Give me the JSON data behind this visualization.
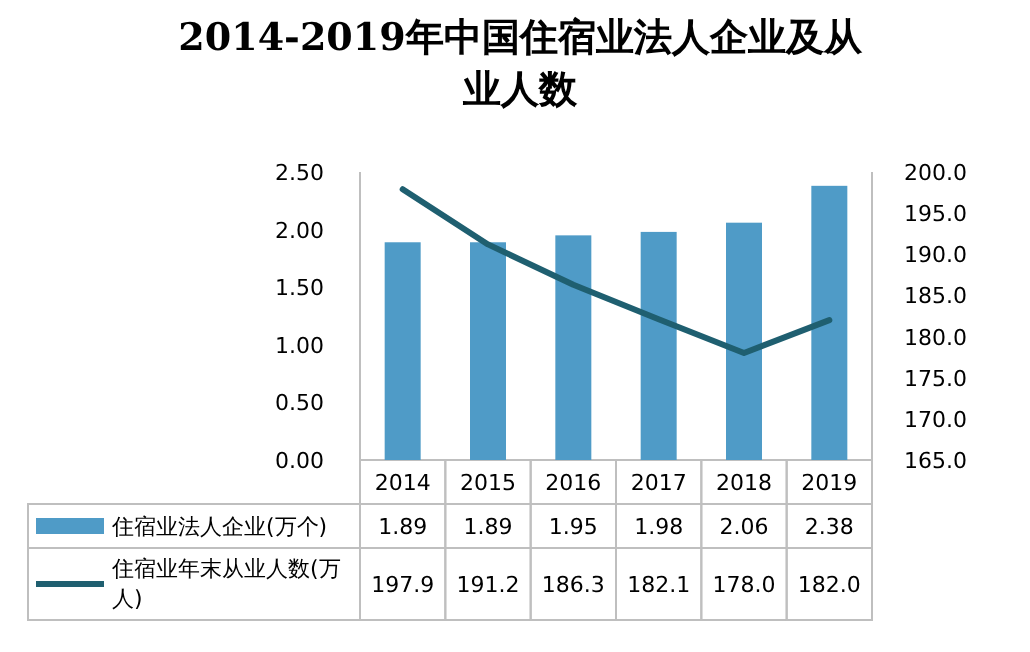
{
  "chart_data": {
    "type": "bar",
    "title": "2014-2019年中国住宿业法人企业及从业人数",
    "categories": [
      "2014",
      "2015",
      "2016",
      "2017",
      "2018",
      "2019"
    ],
    "series": [
      {
        "name": "住宿业法人企业(万个)",
        "color": "#4f9bc7",
        "values": [
          1.89,
          1.89,
          1.95,
          1.98,
          2.06,
          2.38
        ],
        "value_labels": [
          "1.89",
          "1.89",
          "1.95",
          "1.98",
          "2.06",
          "2.38"
        ]
      },
      {
        "name": "住宿业年末从业人数(万人)",
        "type": "line",
        "axis": "y2",
        "color": "#1f5f70",
        "values": [
          197.9,
          191.2,
          186.3,
          182.1,
          178.0,
          182.0
        ],
        "value_labels": [
          "197.9",
          "191.2",
          "186.3",
          "182.1",
          "178.0",
          "182.0"
        ]
      }
    ],
    "ylim": [
      0,
      2.5
    ],
    "yticks": [
      {
        "value": 0,
        "label": "0.00"
      },
      {
        "value": 0.5,
        "label": "0.50"
      },
      {
        "value": 1,
        "label": "1.00"
      },
      {
        "value": 1.5,
        "label": "1.50"
      },
      {
        "value": 2,
        "label": "2.00"
      },
      {
        "value": 2.5,
        "label": "2.50"
      }
    ],
    "y2lim": [
      165,
      200
    ],
    "y2ticks": [
      {
        "value": 165,
        "label": "165.0"
      },
      {
        "value": 170,
        "label": "170.0"
      },
      {
        "value": 175,
        "label": "175.0"
      },
      {
        "value": 180,
        "label": "180.0"
      },
      {
        "value": 185,
        "label": "185.0"
      },
      {
        "value": 190,
        "label": "190.0"
      },
      {
        "value": 195,
        "label": "195.0"
      },
      {
        "value": 200,
        "label": "200.0"
      }
    ],
    "legend": "bottom",
    "marker": "none",
    "line_style": "solid",
    "grid": false
  }
}
